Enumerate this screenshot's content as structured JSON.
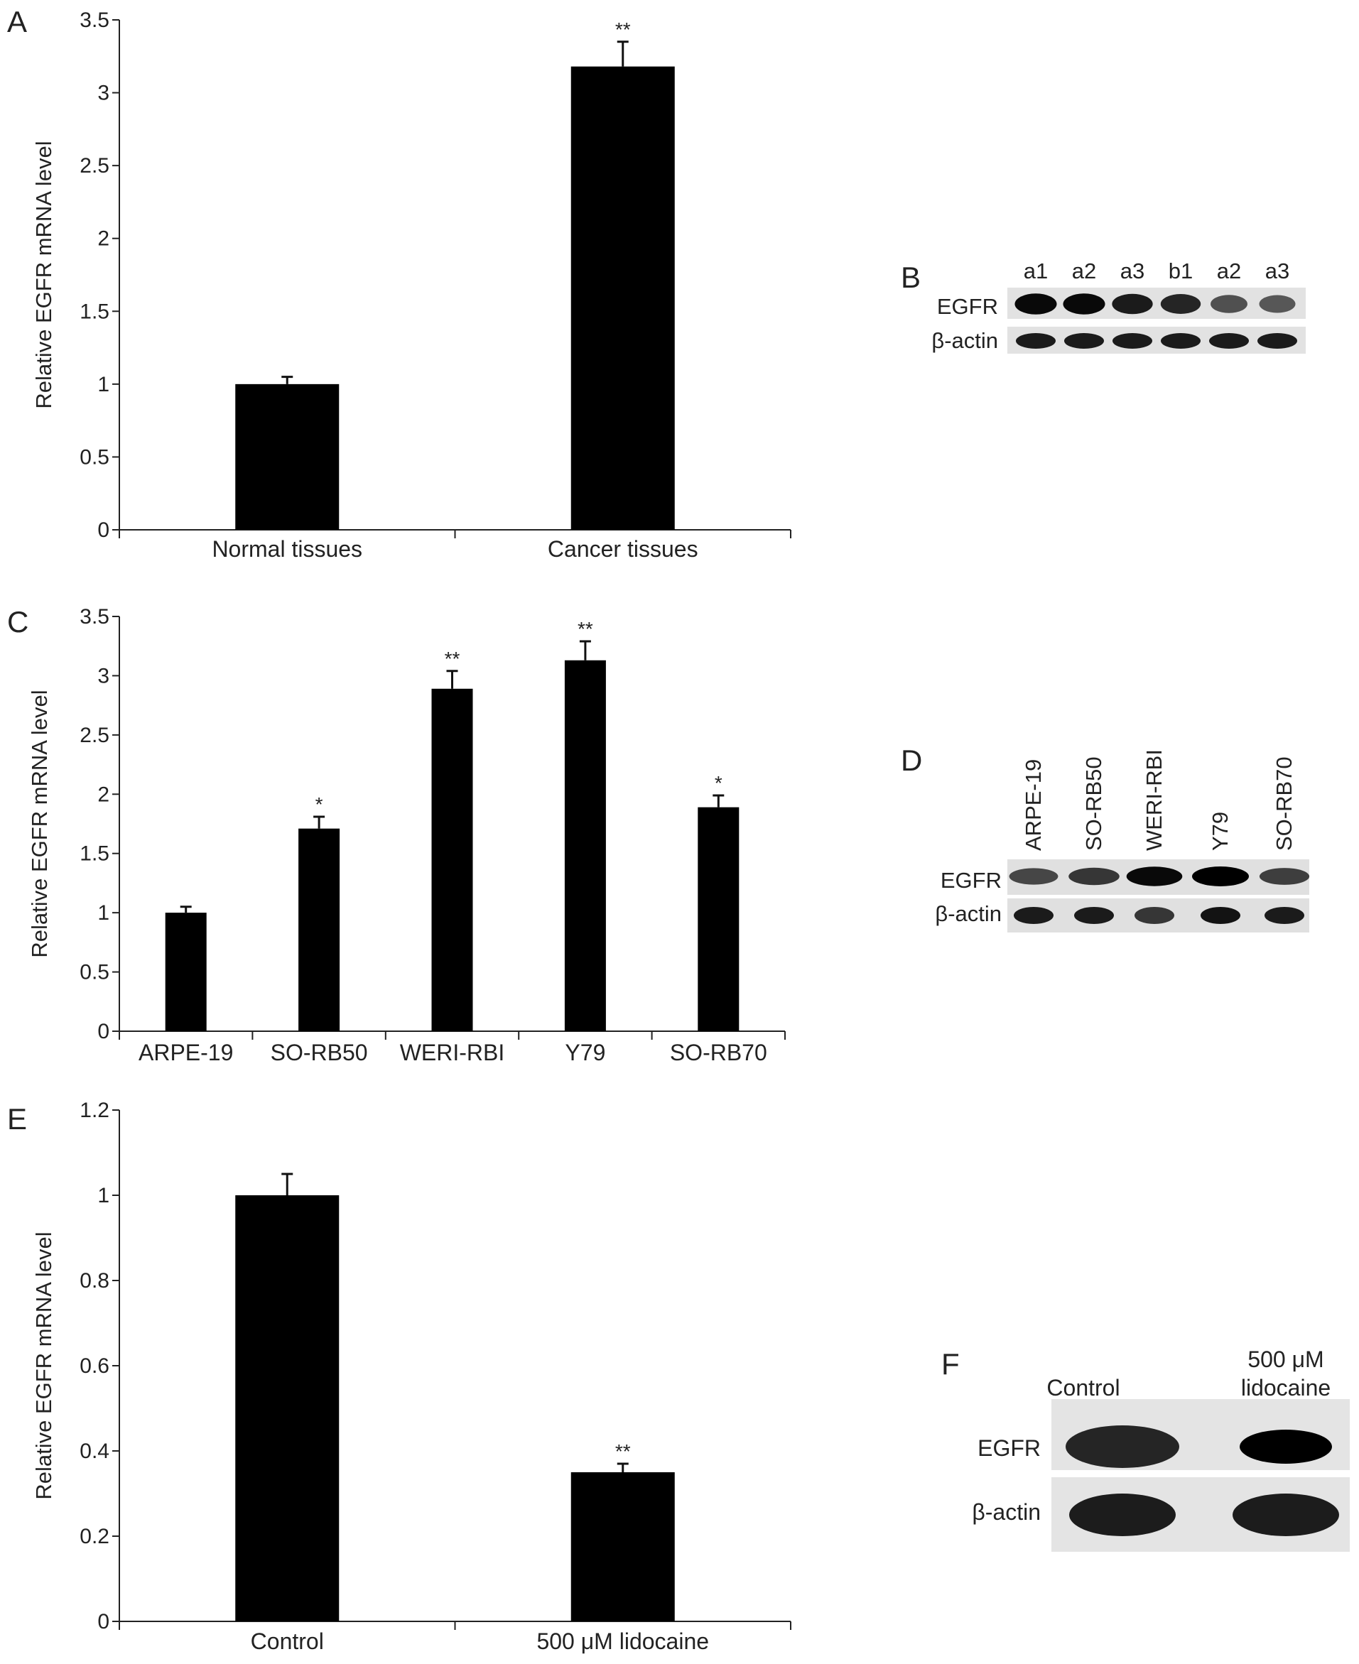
{
  "chart_data": [
    {
      "panel": "A",
      "type": "bar",
      "ylabel": "Relative EGFR mRNA level",
      "ylim": [
        0,
        3.5
      ],
      "yticks": [
        "0",
        "0.5",
        "1",
        "1.5",
        "2",
        "2.5",
        "3",
        "3.5"
      ],
      "categories": [
        "Normal tissues",
        "Cancer tissues"
      ],
      "values": [
        1.0,
        3.18
      ],
      "errors": [
        0.05,
        0.17
      ],
      "significance": [
        "",
        "**"
      ]
    },
    {
      "panel": "C",
      "type": "bar",
      "ylabel": "Relative EGFR mRNA level",
      "ylim": [
        0,
        3.5
      ],
      "yticks": [
        "0",
        "0.5",
        "1",
        "1.5",
        "2",
        "2.5",
        "3",
        "3.5"
      ],
      "categories": [
        "ARPE-19",
        "SO-RB50",
        "WERI-RBI",
        "Y79",
        "SO-RB70"
      ],
      "values": [
        1.0,
        1.71,
        2.89,
        3.13,
        1.89
      ],
      "errors": [
        0.05,
        0.1,
        0.15,
        0.16,
        0.1
      ],
      "significance": [
        "",
        "*",
        "**",
        "**",
        "*"
      ]
    },
    {
      "panel": "E",
      "type": "bar",
      "ylabel": "Relative EGFR mRNA level",
      "ylim": [
        0,
        1.2
      ],
      "yticks": [
        "0",
        "0.2",
        "0.4",
        "0.6",
        "0.8",
        "1",
        "1.2"
      ],
      "categories": [
        "Control",
        "500 μM lidocaine"
      ],
      "values": [
        1.0,
        0.35
      ],
      "errors": [
        0.05,
        0.02
      ],
      "significance": [
        "",
        "**"
      ]
    }
  ],
  "blots": {
    "B": {
      "letter": "B",
      "lanes": [
        "a1",
        "a2",
        "a3",
        "b1",
        "a2",
        "a3"
      ],
      "rows": [
        "EGFR",
        "β-actin"
      ],
      "egfr_intensity": [
        0.95,
        0.95,
        0.85,
        0.8,
        0.55,
        0.5
      ],
      "actin_intensity": [
        0.85,
        0.85,
        0.85,
        0.85,
        0.85,
        0.85
      ]
    },
    "D": {
      "letter": "D",
      "lanes": [
        "ARPE-19",
        "SO-RB50",
        "WERI-RBI",
        "Y79",
        "SO-RB70"
      ],
      "rows": [
        "EGFR",
        "β-actin"
      ],
      "egfr_intensity": [
        0.6,
        0.7,
        0.95,
        1.0,
        0.65
      ],
      "actin_intensity": [
        0.85,
        0.85,
        0.7,
        0.9,
        0.85
      ]
    },
    "F": {
      "letter": "F",
      "lanes": [
        "Control",
        "500 μM",
        "lidocaine"
      ],
      "rows": [
        "EGFR",
        "β-actin"
      ],
      "egfr_intensity": [
        0.8,
        1.0
      ],
      "actin_intensity": [
        0.85,
        0.85
      ]
    }
  },
  "panel_letters": [
    "A",
    "C",
    "E"
  ],
  "colors": {
    "bar": "#000000",
    "axis": "#222222",
    "blot_bg": "#e6e6e6",
    "band": "#0a0a0a"
  }
}
